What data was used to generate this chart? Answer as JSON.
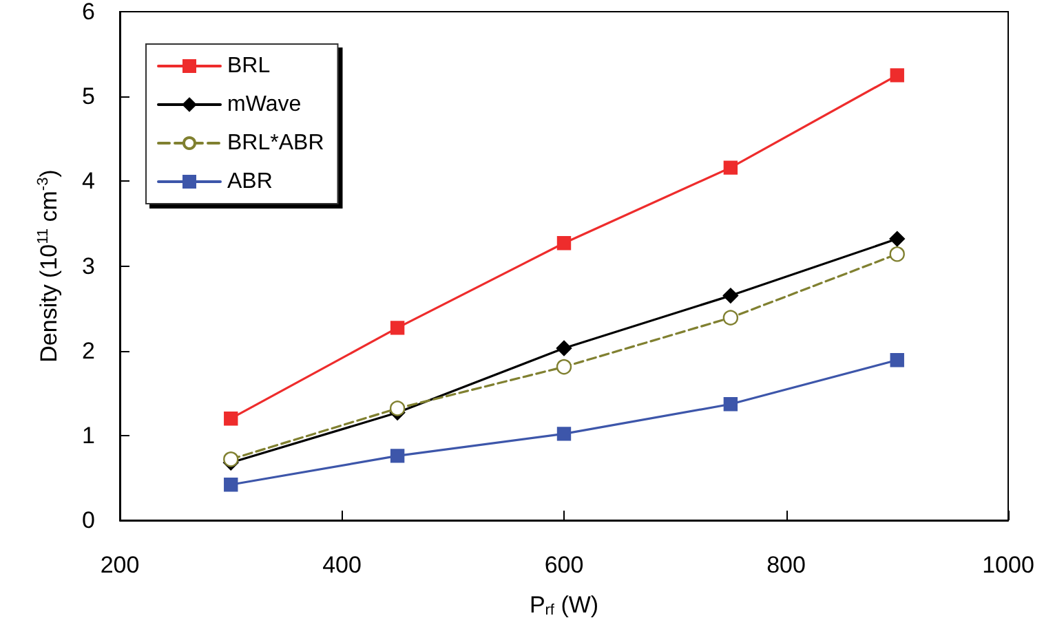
{
  "chart_data": {
    "type": "line",
    "xlabel": "P$_{rf}$ (W)",
    "ylabel": "Density (10$^{11}$ cm$^{-3}$)",
    "x": [
      300,
      450,
      600,
      750,
      900
    ],
    "series": [
      {
        "name": "BRL",
        "color": "#ee2c2c",
        "values": [
          1.2,
          2.27,
          3.27,
          4.16,
          5.25
        ],
        "marker": "square",
        "line_style": "solid"
      },
      {
        "name": "mWave",
        "color": "#000000",
        "values": [
          0.68,
          1.27,
          2.03,
          2.65,
          3.32
        ],
        "marker": "diamond",
        "line_style": "solid"
      },
      {
        "name": "BRL*ABR",
        "color": "#808030",
        "values": [
          0.72,
          1.32,
          1.81,
          2.39,
          3.14
        ],
        "marker": "circle",
        "line_style": "dashed"
      },
      {
        "name": "ABR",
        "color": "#3d56aa",
        "values": [
          0.42,
          0.76,
          1.02,
          1.37,
          1.89
        ],
        "marker": "square",
        "line_style": "solid"
      }
    ],
    "xlim": [
      200,
      1000
    ],
    "xticks": [
      200,
      400,
      600,
      800,
      1000
    ],
    "ylim": [
      0,
      6
    ],
    "yticks": [
      0,
      1,
      2,
      3,
      4,
      5,
      6
    ],
    "grid": false,
    "legend": "top left"
  }
}
